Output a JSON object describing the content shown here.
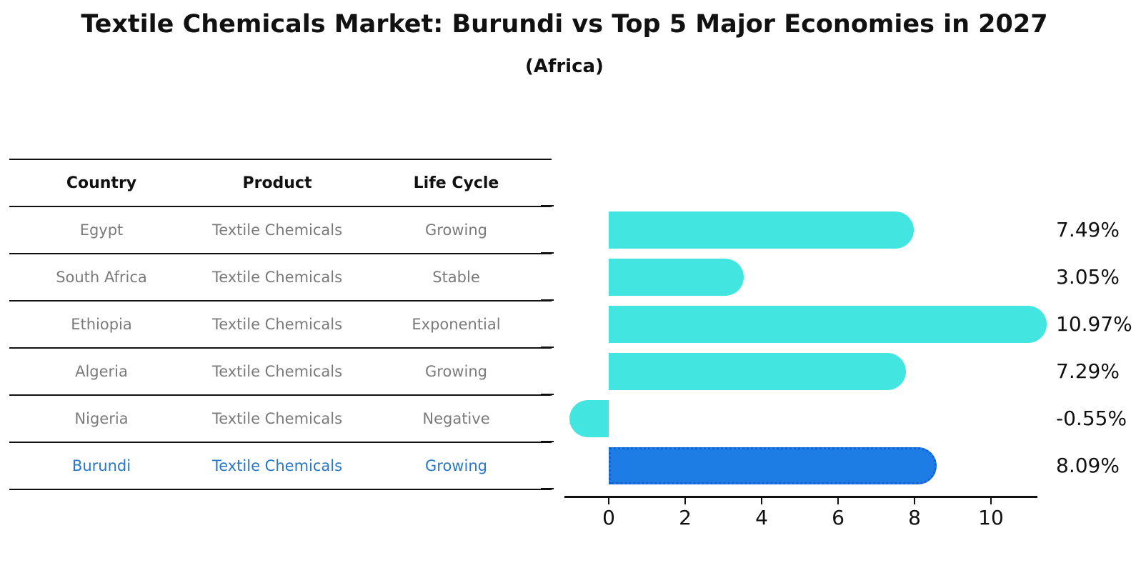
{
  "title": "Textile Chemicals Market: Burundi vs Top 5 Major Economies in 2027",
  "subtitle": "(Africa)",
  "table": {
    "headers": [
      "Country",
      "Product",
      "Life Cycle"
    ],
    "rows": [
      {
        "country": "Egypt",
        "product": "Textile Chemicals",
        "life_cycle": "Growing",
        "highlight": false
      },
      {
        "country": "South Africa",
        "product": "Textile Chemicals",
        "life_cycle": "Stable",
        "highlight": false
      },
      {
        "country": "Ethiopia",
        "product": "Textile Chemicals",
        "life_cycle": "Exponential",
        "highlight": false
      },
      {
        "country": "Algeria",
        "product": "Textile Chemicals",
        "life_cycle": "Growing",
        "highlight": false
      },
      {
        "country": "Nigeria",
        "product": "Textile Chemicals",
        "life_cycle": "Negative",
        "highlight": false
      },
      {
        "country": "Burundi",
        "product": "Textile Chemicals",
        "life_cycle": "Growing",
        "highlight": true
      }
    ]
  },
  "chart_data": {
    "type": "bar",
    "orientation": "horizontal",
    "title": "Textile Chemicals Market: Burundi vs Top 5 Major Economies in 2027",
    "subtitle": "(Africa)",
    "categories": [
      "Egypt",
      "South Africa",
      "Ethiopia",
      "Algeria",
      "Nigeria",
      "Burundi"
    ],
    "values": [
      7.49,
      3.05,
      10.97,
      7.29,
      -0.55,
      8.09
    ],
    "value_labels": [
      "7.49%",
      "3.05%",
      "10.97%",
      "7.29%",
      "-0.55%",
      "8.09%"
    ],
    "xticks": [
      0,
      2,
      4,
      6,
      8,
      10
    ],
    "xlim": [
      -1.16,
      11.2
    ],
    "grid": false,
    "legend": "none",
    "bar_color": "#42e5e0",
    "highlight_index": 5,
    "highlight_bar_color": "#1e7de5",
    "highlight_border_color": "#1a5fd0",
    "axis_color": "#111111",
    "highlight_text_color": "#2878c8",
    "table_text_color": "#7a7a7a"
  }
}
